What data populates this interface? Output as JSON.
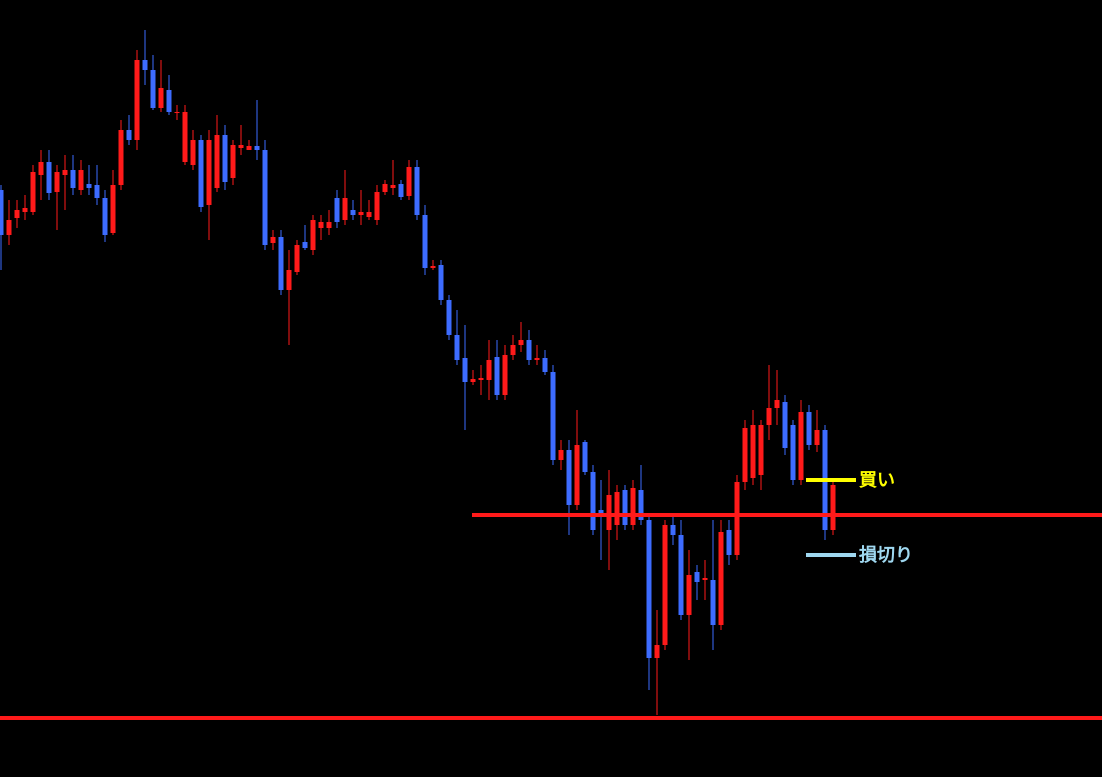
{
  "chart_data": {
    "type": "candlestick",
    "ylim": [
      0,
      777
    ],
    "up_color": "#ff1a1a",
    "down_color": "#3d6cff",
    "open": [
      587,
      542,
      559,
      565,
      565,
      602,
      615,
      585,
      602,
      607,
      587,
      593,
      592,
      579,
      544,
      592,
      647,
      637,
      717,
      707,
      669,
      687,
      664,
      615,
      612,
      637,
      572,
      589,
      642,
      599,
      629,
      627,
      631,
      627,
      534,
      540,
      487,
      505,
      535,
      527,
      549,
      549,
      579,
      557,
      567,
      562,
      560,
      557,
      585,
      589,
      593,
      581,
      610,
      562,
      509,
      512,
      477,
      442,
      419,
      395,
      397,
      397,
      420,
      382,
      422,
      432,
      437,
      417,
      419,
      405,
      317,
      327,
      272,
      335,
      305,
      267,
      247,
      252,
      287,
      252,
      287,
      257,
      119,
      132,
      252,
      242,
      162,
      205,
      197,
      197,
      152,
      247,
      222,
      295,
      299,
      302,
      352,
      369,
      375,
      352,
      297,
      365,
      332,
      347,
      247
    ],
    "high": [
      592,
      577,
      577,
      582,
      612,
      627,
      627,
      612,
      622,
      622,
      617,
      612,
      612,
      587,
      607,
      657,
      662,
      727,
      747,
      722,
      717,
      702,
      672,
      672,
      647,
      642,
      647,
      662,
      652,
      637,
      652,
      637,
      677,
      637,
      547,
      547,
      527,
      537,
      552,
      562,
      562,
      567,
      587,
      607,
      577,
      587,
      577,
      592,
      597,
      617,
      597,
      617,
      617,
      572,
      517,
      517,
      482,
      467,
      452,
      407,
      412,
      437,
      437,
      432,
      442,
      455,
      447,
      432,
      427,
      412,
      337,
      337,
      367,
      337,
      312,
      297,
      307,
      292,
      292,
      297,
      312,
      262,
      167,
      257,
      262,
      257,
      227,
      212,
      217,
      257,
      257,
      257,
      302,
      357,
      367,
      357,
      412,
      407,
      382,
      357,
      377,
      372,
      367,
      352,
      297
    ],
    "low": [
      507,
      532,
      549,
      557,
      562,
      577,
      577,
      547,
      567,
      582,
      582,
      582,
      572,
      535,
      542,
      587,
      632,
      627,
      692,
      667,
      665,
      662,
      657,
      612,
      607,
      565,
      537,
      585,
      587,
      592,
      622,
      627,
      617,
      527,
      527,
      482,
      432,
      502,
      527,
      522,
      537,
      542,
      549,
      552,
      557,
      552,
      557,
      552,
      582,
      582,
      577,
      577,
      557,
      502,
      507,
      472,
      437,
      412,
      347,
      392,
      382,
      377,
      377,
      377,
      417,
      425,
      412,
      412,
      402,
      312,
      307,
      242,
      267,
      302,
      242,
      217,
      207,
      237,
      247,
      247,
      252,
      87,
      62,
      127,
      232,
      157,
      117,
      177,
      177,
      127,
      147,
      212,
      217,
      287,
      292,
      287,
      337,
      352,
      322,
      292,
      292,
      327,
      325,
      237,
      242
    ],
    "close": [
      542,
      557,
      567,
      569,
      605,
      615,
      584,
      605,
      607,
      589,
      607,
      589,
      579,
      542,
      592,
      647,
      637,
      717,
      707,
      669,
      689,
      665,
      665,
      665,
      637,
      570,
      637,
      642,
      595,
      632,
      632,
      631,
      627,
      532,
      540,
      487,
      507,
      532,
      529,
      557,
      555,
      555,
      555,
      579,
      562,
      565,
      565,
      585,
      593,
      592,
      580,
      610,
      562,
      509,
      511,
      477,
      442,
      417,
      395,
      398,
      399,
      417,
      382,
      422,
      432,
      437,
      417,
      419,
      405,
      317,
      327,
      272,
      332,
      305,
      247,
      262,
      282,
      285,
      252,
      289,
      257,
      119,
      132,
      252,
      242,
      162,
      202,
      195,
      199,
      152,
      245,
      222,
      295,
      349,
      352,
      352,
      369,
      377,
      329,
      297,
      365,
      332,
      347,
      247,
      292
    ],
    "levels": [
      {
        "value": 262,
        "color": "#ff1a1a"
      },
      {
        "value": 59,
        "color": "#ff1a1a"
      }
    ],
    "annotations": [
      {
        "label": "買い",
        "value": 297,
        "color": "#ffff00"
      },
      {
        "label": "損切り",
        "value": 222,
        "color": "#9fd8f0"
      }
    ]
  }
}
